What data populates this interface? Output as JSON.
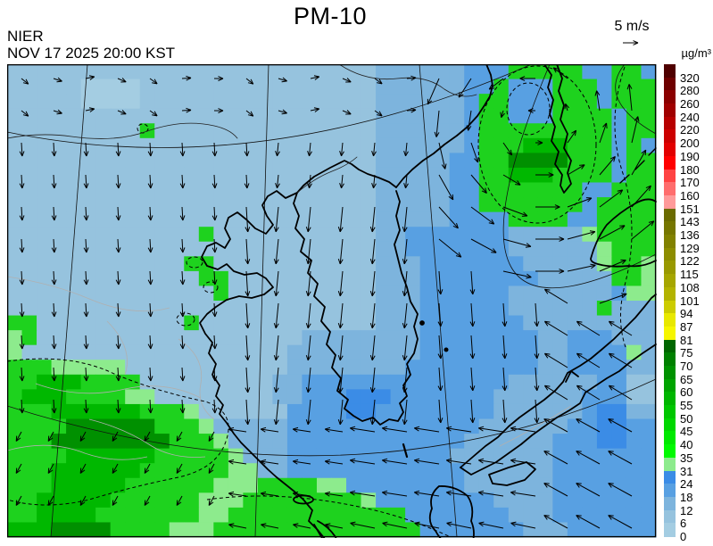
{
  "header": {
    "title": "PM-10",
    "agency": "NIER",
    "datetime": "NOV 17 2025 20:00 KST",
    "wind_scale_label": "5 m/s",
    "unit_label": "µg/m³"
  },
  "colorbar": {
    "labels": [
      "320",
      "280",
      "260",
      "240",
      "220",
      "200",
      "190",
      "180",
      "170",
      "160",
      "151",
      "143",
      "136",
      "129",
      "122",
      "115",
      "108",
      "101",
      "94",
      "87",
      "81",
      "75",
      "70",
      "65",
      "60",
      "55",
      "50",
      "45",
      "40",
      "35",
      "31",
      "24",
      "18",
      "12",
      "6",
      "0"
    ],
    "colors": [
      "#4f0000",
      "#6e0000",
      "#8b0000",
      "#a00000",
      "#b70000",
      "#cc0000",
      "#e20000",
      "#ff0000",
      "#ff4343",
      "#ff6d6d",
      "#ff9a9a",
      "#6b6b00",
      "#767600",
      "#818100",
      "#8d8d00",
      "#999900",
      "#a6a600",
      "#b3b300",
      "#cccc00",
      "#e8e800",
      "#f6f600",
      "#006600",
      "#008000",
      "#009200",
      "#00a400",
      "#00b600",
      "#00c700",
      "#00d800",
      "#00e900",
      "#00fa00",
      "#8deb8d",
      "#3b8ce6",
      "#58a0e2",
      "#7db4dd",
      "#96c3de",
      "#a4cde2"
    ]
  },
  "map": {
    "cols": 44,
    "rows": 32,
    "palette": {
      "a": "#a4cde2",
      "b": "#96c3de",
      "c": "#7db4dd",
      "d": "#58a0e2",
      "e": "#3b8ce6",
      "f": "#8deb8d",
      "g": "#1ed21e",
      "h": "#00b800",
      "i": "#009000",
      "j": "#007000"
    },
    "grid_rows": [
      "bbbbbbbbbbbbbbbbbbbbbbbbbccccccdddgggggddggd",
      "bbbbbaaaabbbbbbbbbbbbbbbbccccccddgdddgggdggg",
      "bbbbbaaaabbbbbbbbbbbbbbbbccccccdggdddgggdggg",
      "bbbbbbbbbbbbbbbbbbbbbbbbbccccccdggdddggggdgg",
      "bbbbbbbbbgbbbbbbbbbbbbbbbccccccdgggggggggdgg",
      "bbbbbbbbbbbbbbbbbbbbbbbbbccccccdggghhhgggdgd",
      "bbbbbbbbbbbbbbbbbbbbbbbbbcccccddggiiiigggdgg",
      "bbbbbbbbbbbbbbbbbbbbbbbbbcccccddgghhhggggdgg",
      "bbbbbbbbbbbbbbbbbbbbbbbbbcccccddgggggggddggg",
      "bbbbbbbbbbbbbbbbbbbbbbbbbcccccddgggggggdgggg",
      "bbbbbbbbbbbbbbbbbbbbbbbbbcccccddddggggddgggg",
      "bbbbbbbbbbbbbgbbbbbbbbbbbccdddddddcccccfgggg",
      "bbbbbbbbbbbbbbbbbbbbbbbbbccdddddddccccccfggg",
      "bbbbbbbbbbbbggbbbbbbbbbbbcccdddddddcccccfggf",
      "bbbbbbbbbbbbbggbbbbbbbbbbcccddddddddcccccggf",
      "bbbbbbbbbbbbbbgbbbbbbbbbbcccddddddcccccccdff",
      "bbbbbbbbbbbbbbbbbbbbbbbbbcccddddddccccccgccc",
      "ggbbbbbbbbbbgbbbbbbbbbbbbcccdddddddccccccccc",
      "fgbbbbbbbbbbbbbbbbbbccccccccddddddddccdddccc",
      "fbbbbbbbbbbbbbbbbbbcccccccccddddddddccddddfc",
      "gggfffffbbbbbbbbbbbccccccccdddddddddccddddcc",
      "gghhhggggbbbbbbbbbccddddddddddddddccccccddbb",
      "ghhhggggffbbbbbbbbccdddeeedddddddccccccdddbb",
      "ggghhhhhhgggfbbbbbbddddeeddddddddccccccdeecc",
      "ggggiiiiiigggfcccccdddddddddddddccccccddeedd",
      "gggiiiiiiiigggfccccddddddddddddccccccdddeedd",
      "gggghhhhhhgggggfcccdddddddddddcccccccddddddd",
      "ggghhhhhhggggggffccddddddddddddccccccddddddd",
      "ggghhhhhggggggfffggggffddddddddccccccddddddd",
      "gghhhhhggggggfffggggggggfddddddddccccddddddd",
      "gghhhhgggggggffggggggggggggdddddddcccddddddd",
      "hhhiiiiggggfffggggggggggggggdddddddcccdddddd"
    ]
  },
  "wind": {
    "spacing": 36,
    "arrow_color": "#000000",
    "flow_summary": "southward over mainland, counterclockwise cyclone near Sakhalin, westward along southern edge"
  }
}
